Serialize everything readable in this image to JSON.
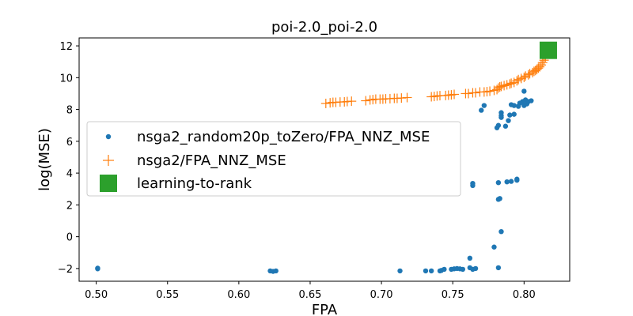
{
  "chart_data": {
    "type": "scatter",
    "title": "poi-2.0_poi-2.0",
    "xlabel": "FPA",
    "ylabel": "log(MSE)",
    "xlim": [
      0.488,
      0.832
    ],
    "ylim": [
      -2.8,
      12.5
    ],
    "xticks": [
      "0.50",
      "0.55",
      "0.60",
      "0.65",
      "0.70",
      "0.75",
      "0.80"
    ],
    "yticks": [
      "−2",
      "0",
      "2",
      "4",
      "6",
      "8",
      "10",
      "12"
    ],
    "xtick_values": [
      0.5,
      0.55,
      0.6,
      0.65,
      0.7,
      0.75,
      0.8
    ],
    "ytick_values": [
      -2,
      0,
      2,
      4,
      6,
      8,
      10,
      12
    ],
    "grid": false,
    "legend_position": "center-left",
    "series": [
      {
        "name": "nsga2_random20p_toZero/FPA_NNZ_MSE",
        "marker": "dot",
        "color": "#1f77b4",
        "points": [
          [
            0.501,
            -1.98
          ],
          [
            0.501,
            -2.02
          ],
          [
            0.622,
            -2.15
          ],
          [
            0.624,
            -2.18
          ],
          [
            0.626,
            -2.15
          ],
          [
            0.713,
            -2.15
          ],
          [
            0.731,
            -2.15
          ],
          [
            0.735,
            -2.15
          ],
          [
            0.741,
            -2.15
          ],
          [
            0.742,
            -2.12
          ],
          [
            0.744,
            -2.05
          ],
          [
            0.749,
            -2.05
          ],
          [
            0.751,
            -2.02
          ],
          [
            0.753,
            -2.0
          ],
          [
            0.755,
            -2.02
          ],
          [
            0.757,
            -2.05
          ],
          [
            0.762,
            -1.95
          ],
          [
            0.764,
            -2.05
          ],
          [
            0.766,
            -2.0
          ],
          [
            0.762,
            -1.35
          ],
          [
            0.779,
            -0.65
          ],
          [
            0.782,
            -1.95
          ],
          [
            0.784,
            0.32
          ],
          [
            0.764,
            3.22
          ],
          [
            0.764,
            3.35
          ],
          [
            0.782,
            3.4
          ],
          [
            0.782,
            2.35
          ],
          [
            0.783,
            2.4
          ],
          [
            0.788,
            3.45
          ],
          [
            0.791,
            3.48
          ],
          [
            0.795,
            3.55
          ],
          [
            0.795,
            3.62
          ],
          [
            0.781,
            6.85
          ],
          [
            0.782,
            7.0
          ],
          [
            0.784,
            7.5
          ],
          [
            0.784,
            7.62
          ],
          [
            0.787,
            6.95
          ],
          [
            0.789,
            7.3
          ],
          [
            0.79,
            7.65
          ],
          [
            0.793,
            7.7
          ],
          [
            0.77,
            7.95
          ],
          [
            0.772,
            8.25
          ],
          [
            0.784,
            7.8
          ],
          [
            0.791,
            8.3
          ],
          [
            0.793,
            8.25
          ],
          [
            0.796,
            8.2
          ],
          [
            0.797,
            8.4
          ],
          [
            0.799,
            8.5
          ],
          [
            0.8,
            8.25
          ],
          [
            0.801,
            8.6
          ],
          [
            0.802,
            8.35
          ],
          [
            0.803,
            8.5
          ],
          [
            0.805,
            8.55
          ],
          [
            0.8,
            9.15
          ]
        ]
      },
      {
        "name": "nsga2/FPA_NNZ_MSE",
        "marker": "plus",
        "color": "#ff7f0e",
        "points": [
          [
            0.661,
            8.38
          ],
          [
            0.664,
            8.42
          ],
          [
            0.666,
            8.45
          ],
          [
            0.668,
            8.45
          ],
          [
            0.671,
            8.47
          ],
          [
            0.674,
            8.48
          ],
          [
            0.676,
            8.5
          ],
          [
            0.679,
            8.52
          ],
          [
            0.689,
            8.55
          ],
          [
            0.692,
            8.6
          ],
          [
            0.694,
            8.62
          ],
          [
            0.696,
            8.65
          ],
          [
            0.699,
            8.65
          ],
          [
            0.701,
            8.65
          ],
          [
            0.703,
            8.67
          ],
          [
            0.706,
            8.68
          ],
          [
            0.709,
            8.7
          ],
          [
            0.711,
            8.7
          ],
          [
            0.714,
            8.72
          ],
          [
            0.718,
            8.75
          ],
          [
            0.735,
            8.8
          ],
          [
            0.737,
            8.82
          ],
          [
            0.739,
            8.85
          ],
          [
            0.741,
            8.87
          ],
          [
            0.745,
            8.88
          ],
          [
            0.747,
            8.9
          ],
          [
            0.749,
            8.92
          ],
          [
            0.751,
            8.95
          ],
          [
            0.759,
            9.0
          ],
          [
            0.761,
            9.0
          ],
          [
            0.764,
            9.05
          ],
          [
            0.766,
            9.05
          ],
          [
            0.769,
            9.1
          ],
          [
            0.772,
            9.1
          ],
          [
            0.774,
            9.12
          ],
          [
            0.776,
            9.15
          ],
          [
            0.779,
            9.2
          ],
          [
            0.781,
            9.25
          ],
          [
            0.782,
            9.35
          ],
          [
            0.783,
            9.42
          ],
          [
            0.784,
            9.45
          ],
          [
            0.786,
            9.5
          ],
          [
            0.788,
            9.55
          ],
          [
            0.79,
            9.6
          ],
          [
            0.791,
            9.65
          ],
          [
            0.793,
            9.7
          ],
          [
            0.795,
            9.8
          ],
          [
            0.796,
            9.88
          ],
          [
            0.798,
            9.95
          ],
          [
            0.8,
            10.02
          ],
          [
            0.801,
            10.1
          ],
          [
            0.803,
            10.18
          ],
          [
            0.804,
            10.25
          ],
          [
            0.806,
            10.32
          ],
          [
            0.807,
            10.4
          ],
          [
            0.808,
            10.45
          ],
          [
            0.809,
            10.52
          ],
          [
            0.81,
            10.6
          ],
          [
            0.811,
            10.68
          ],
          [
            0.812,
            10.8
          ],
          [
            0.813,
            10.95
          ],
          [
            0.814,
            11.1
          ],
          [
            0.815,
            11.3
          ]
        ]
      },
      {
        "name": "learning-to-rank",
        "marker": "square",
        "color": "#2ca02c",
        "points": [
          [
            0.817,
            11.72
          ]
        ]
      }
    ]
  }
}
